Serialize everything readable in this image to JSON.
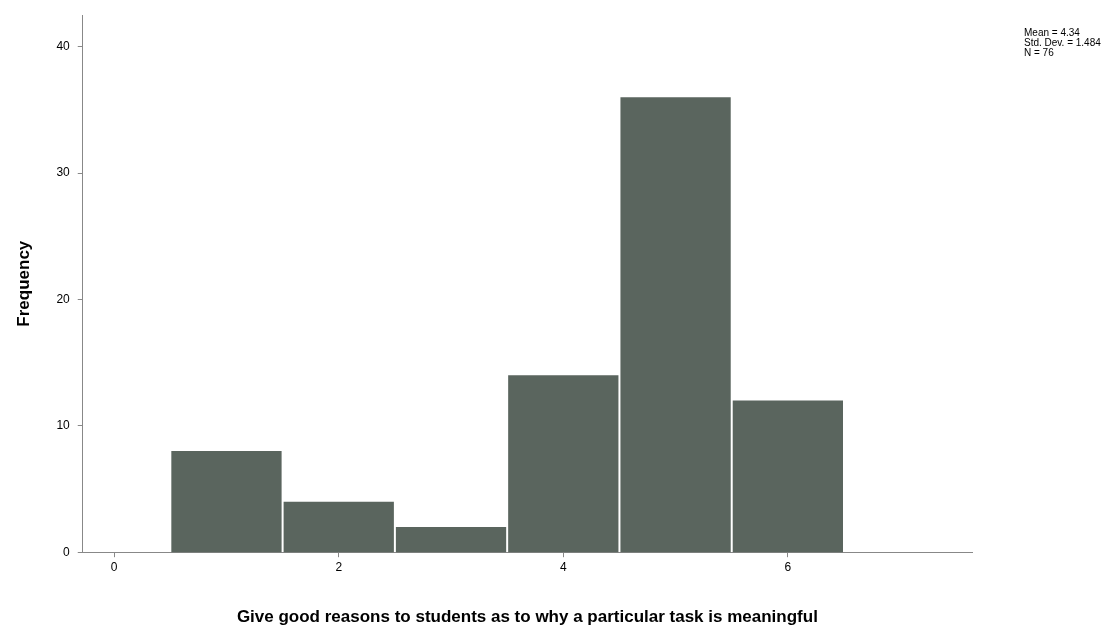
{
  "chart_data": {
    "type": "histogram",
    "xlabel": "Give good reasons to students as to why a particular task is meaningful",
    "ylabel": "Frequency",
    "bins": [
      0.5,
      1.5,
      2.5,
      3.5,
      4.5,
      5.5,
      6.5
    ],
    "values": [
      8,
      4,
      2,
      14,
      36,
      12
    ],
    "color": "#5a655e",
    "xlim": [
      -0.28,
      7.64
    ],
    "xticks": [
      0,
      2,
      4,
      6
    ],
    "ylim": [
      0,
      42.5
    ],
    "yticks": [
      0,
      10,
      20,
      30,
      40
    ],
    "annotations": [
      "Mean = 4.34",
      "Std. Dev. = 1.484",
      "N = 76"
    ],
    "grid": false,
    "legend": false
  }
}
